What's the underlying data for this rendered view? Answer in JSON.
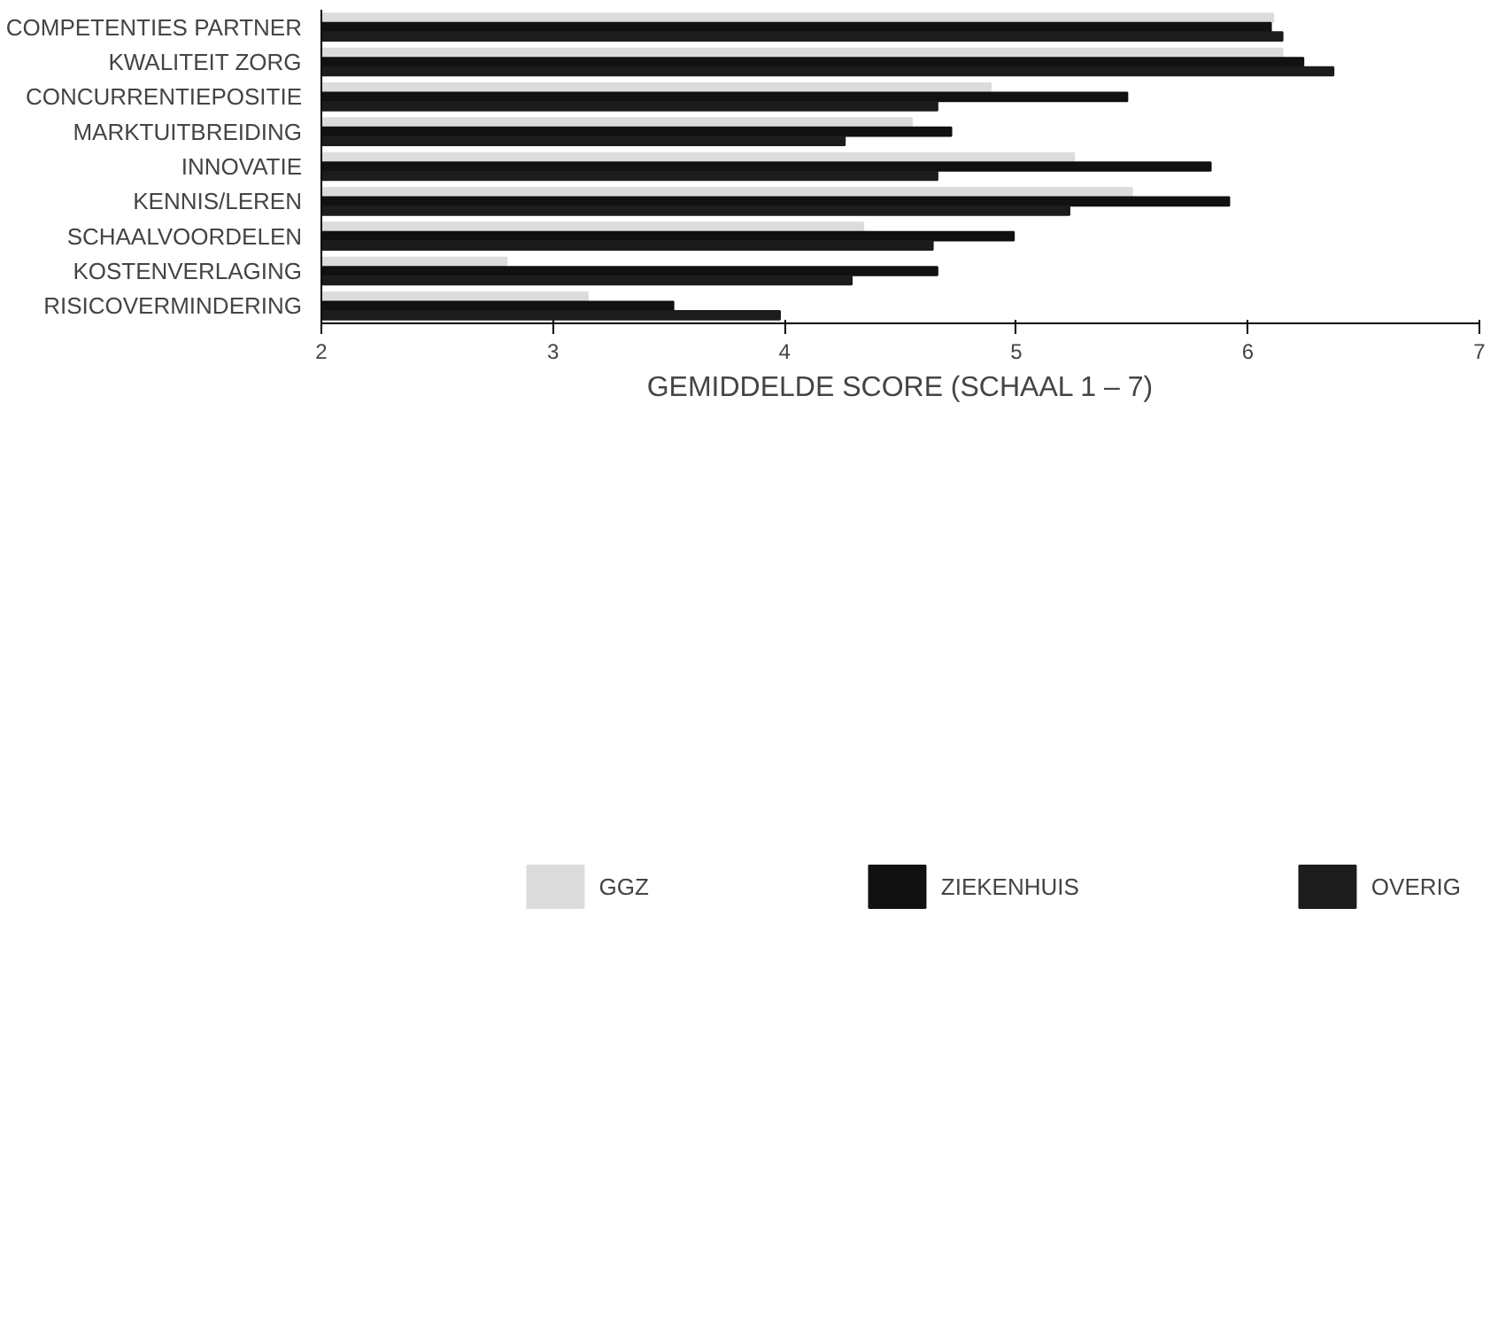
{
  "chart_data": {
    "type": "bar",
    "orientation": "horizontal",
    "categories": [
      "COMPETENTIES PARTNER",
      "KWALITEIT ZORG",
      "CONCURRENTIEPOSITIE",
      "MARKTUITBREIDING",
      "INNOVATIE",
      "KENNIS/LEREN",
      "SCHAALVOORDELEN",
      "KOSTENVERLAGING",
      "RISICOVERMINDERING"
    ],
    "series": [
      {
        "name": "GGZ",
        "color": "#dcdcdc",
        "values": [
          6.11,
          6.15,
          4.89,
          4.55,
          5.25,
          5.5,
          4.34,
          2.8,
          3.15
        ]
      },
      {
        "name": "ZIEKENHUIS",
        "color": "#111111",
        "values": [
          6.1,
          6.24,
          5.48,
          4.72,
          5.84,
          5.92,
          4.99,
          4.66,
          3.52
        ]
      },
      {
        "name": "OVERIG",
        "color": "#1c1c1c",
        "values": [
          6.15,
          6.37,
          4.66,
          4.26,
          4.66,
          5.23,
          4.64,
          4.29,
          3.98
        ]
      }
    ],
    "xlabel": "GEMIDDELDE SCORE (SCHAAL 1 – 7)",
    "xlim": [
      2,
      7
    ],
    "xticks": [
      2,
      3,
      4,
      5,
      6,
      7
    ],
    "grid": false,
    "legend": "bottom"
  }
}
